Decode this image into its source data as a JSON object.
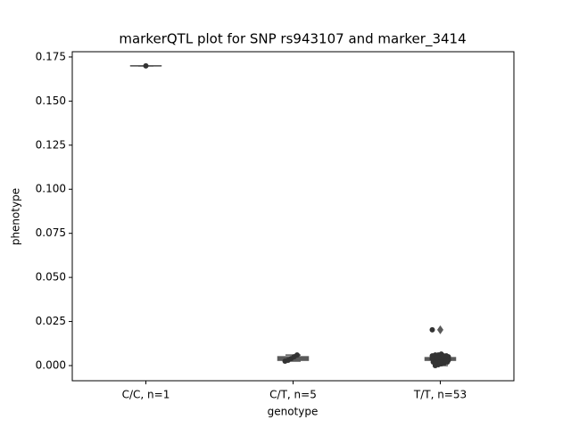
{
  "chart_data": {
    "type": "box",
    "title": "markerQTL plot for SNP rs943107 and marker_3414",
    "x_label": "genotype",
    "y_label": "phenotype",
    "categories": [
      "C/C, n=1",
      "C/T, n=5",
      "T/T, n=53"
    ],
    "box_color": "#5a5a5a",
    "point_color": "#333333",
    "boxes": [
      {
        "q1": 0.17,
        "median": 0.17,
        "q3": 0.17,
        "whislo": 0.17,
        "whishi": 0.17,
        "fliers": []
      },
      {
        "q1": 0.003,
        "median": 0.004,
        "q3": 0.005,
        "whislo": 0.0025,
        "whishi": 0.006,
        "fliers": []
      },
      {
        "q1": 0.003,
        "median": 0.004,
        "q3": 0.0045,
        "whislo": 0.0,
        "whishi": 0.0065,
        "fliers": [
          0.0203
        ]
      }
    ],
    "points": [
      [
        0.17
      ],
      [
        0.0025,
        0.003,
        0.004,
        0.005,
        0.006
      ],
      [
        0.0203,
        0.0,
        0.0005,
        0.001,
        0.0015,
        0.002,
        0.002,
        0.0025,
        0.0025,
        0.003,
        0.003,
        0.003,
        0.003,
        0.0035,
        0.0035,
        0.0035,
        0.0035,
        0.004,
        0.004,
        0.004,
        0.004,
        0.004,
        0.004,
        0.0045,
        0.0045,
        0.0045,
        0.0045,
        0.0045,
        0.005,
        0.005,
        0.005,
        0.005,
        0.005,
        0.0055,
        0.0055,
        0.006,
        0.006,
        0.0065,
        0.0025,
        0.003,
        0.0035,
        0.004,
        0.0045,
        0.005,
        0.003,
        0.0035,
        0.004,
        0.0045,
        0.002,
        0.0055,
        0.003,
        0.004,
        0.0015
      ]
    ],
    "ylim": [
      -0.0086,
      0.178
    ],
    "yticks": [
      {
        "value": 0,
        "label": "0.000"
      },
      0.025,
      {
        "value": 0.05,
        "label": "0.050"
      },
      0.075,
      {
        "value": 0.1,
        "label": "0.100"
      },
      0.125,
      {
        "value": 0.15,
        "label": "0.150"
      },
      0.175
    ]
  }
}
